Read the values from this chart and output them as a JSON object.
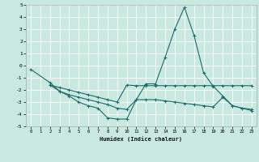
{
  "xlabel": "Humidex (Indice chaleur)",
  "ylabel": "",
  "xlim": [
    -0.5,
    23.5
  ],
  "ylim": [
    -5,
    5
  ],
  "xticks": [
    0,
    1,
    2,
    3,
    4,
    5,
    6,
    7,
    8,
    9,
    10,
    11,
    12,
    13,
    14,
    15,
    16,
    17,
    18,
    19,
    20,
    21,
    22,
    23
  ],
  "yticks": [
    -5,
    -4,
    -3,
    -2,
    -1,
    0,
    1,
    2,
    3,
    4,
    5
  ],
  "background_color": "#c8e8e0",
  "grid_color": "#e8f8f4",
  "line_color": "#1a6b6b",
  "series": [
    {
      "x": [
        0,
        2,
        3,
        4,
        5,
        6,
        7,
        8,
        9,
        10,
        11,
        12,
        13,
        14,
        15,
        16,
        17,
        18,
        19,
        20,
        21,
        22,
        23
      ],
      "y": [
        -0.3,
        -1.4,
        -2.1,
        -2.5,
        -3.0,
        -3.3,
        -3.5,
        -4.3,
        -4.4,
        -4.4,
        -2.8,
        -1.5,
        -1.5,
        0.7,
        3.0,
        4.8,
        2.5,
        -0.6,
        -1.7,
        -2.5,
        -3.3,
        -3.5,
        -3.6
      ]
    },
    {
      "x": [
        2,
        3,
        4,
        5,
        6,
        7,
        8,
        9,
        10,
        11,
        12,
        13,
        14,
        15,
        16,
        17,
        18,
        19,
        20,
        21,
        22,
        23
      ],
      "y": [
        -1.6,
        -1.8,
        -2.0,
        -2.2,
        -2.4,
        -2.6,
        -2.8,
        -3.0,
        -1.6,
        -1.65,
        -1.65,
        -1.65,
        -1.65,
        -1.65,
        -1.65,
        -1.65,
        -1.65,
        -1.65,
        -1.65,
        -1.65,
        -1.65,
        -1.65
      ]
    },
    {
      "x": [
        2,
        3,
        4,
        5,
        6,
        7,
        8,
        9,
        10,
        11,
        12,
        13,
        14,
        15,
        16,
        17,
        18,
        19,
        20,
        21,
        22,
        23
      ],
      "y": [
        -1.6,
        -2.1,
        -2.4,
        -2.6,
        -2.8,
        -3.0,
        -3.2,
        -3.5,
        -3.6,
        -2.8,
        -2.8,
        -2.8,
        -2.9,
        -3.0,
        -3.1,
        -3.2,
        -3.3,
        -3.4,
        -2.6,
        -3.3,
        -3.5,
        -3.7
      ]
    }
  ]
}
